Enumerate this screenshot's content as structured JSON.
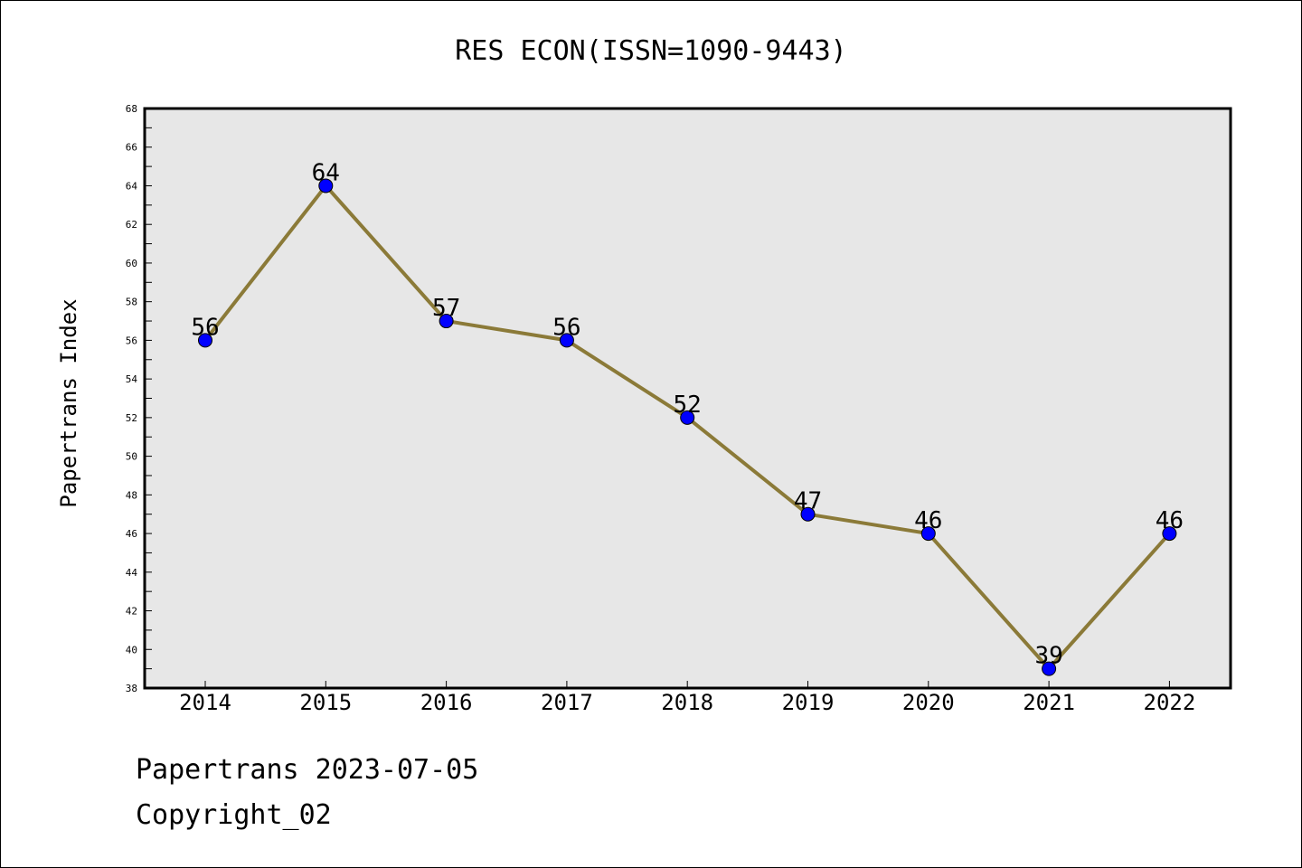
{
  "chart_data": {
    "type": "line",
    "title": "RES ECON(ISSN=1090-9443)",
    "xlabel": "",
    "ylabel": "Papertrans Index",
    "x": [
      "2014",
      "2015",
      "2016",
      "2017",
      "2018",
      "2019",
      "2020",
      "2021",
      "2022"
    ],
    "series": [
      {
        "values": [
          56,
          64,
          57,
          56,
          52,
          47,
          46,
          39,
          46
        ]
      }
    ],
    "ylim": [
      38,
      68
    ],
    "yticks": [
      38,
      40,
      42,
      44,
      46,
      48,
      50,
      52,
      54,
      56,
      58,
      60,
      62,
      64,
      66,
      68
    ],
    "grid": false,
    "legend": "none",
    "colors": {
      "line": "#8b7a38",
      "marker": "#0000ff",
      "plot_background": "#e7e7e7"
    }
  },
  "footer": {
    "line1": "Papertrans 2023-07-05",
    "line2": "Copyright_02"
  }
}
